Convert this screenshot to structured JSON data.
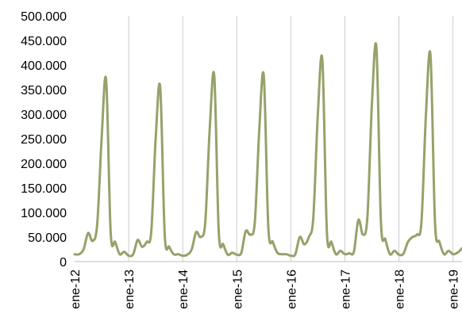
{
  "chart_data": {
    "type": "line",
    "title": "",
    "xlabel": "",
    "ylabel": "",
    "ylim": [
      0,
      500000
    ],
    "y_ticks": [
      0,
      50000,
      100000,
      150000,
      200000,
      250000,
      300000,
      350000,
      400000,
      450000,
      500000
    ],
    "y_tick_labels": [
      "0",
      "50.000",
      "100.000",
      "150.000",
      "200.000",
      "250.000",
      "300.000",
      "350.000",
      "400.000",
      "450.000",
      "500.000"
    ],
    "x_tick_labels": [
      "ene-12",
      "ene-13",
      "ene-14",
      "ene-15",
      "ene-16",
      "ene-17",
      "ene-18",
      "ene-19"
    ],
    "grid": "vertical",
    "legend": "none",
    "line_color": "#95a26a",
    "series": [
      {
        "x": [
          "2012-01",
          "2012-02",
          "2012-03",
          "2012-04",
          "2012-05",
          "2012-06",
          "2012-07",
          "2012-08",
          "2012-09",
          "2012-10",
          "2012-11",
          "2012-12",
          "2013-01",
          "2013-02",
          "2013-03",
          "2013-04",
          "2013-05",
          "2013-06",
          "2013-07",
          "2013-08",
          "2013-09",
          "2013-10",
          "2013-11",
          "2013-12",
          "2014-01",
          "2014-02",
          "2014-03",
          "2014-04",
          "2014-05",
          "2014-06",
          "2014-07",
          "2014-08",
          "2014-09",
          "2014-10",
          "2014-11",
          "2014-12",
          "2015-01",
          "2015-02",
          "2015-03",
          "2015-04",
          "2015-05",
          "2015-06",
          "2015-07",
          "2015-08",
          "2015-09",
          "2015-10",
          "2015-11",
          "2015-12",
          "2016-01",
          "2016-02",
          "2016-03",
          "2016-04",
          "2016-05",
          "2016-06",
          "2016-07",
          "2016-08",
          "2016-09",
          "2016-10",
          "2016-11",
          "2016-12",
          "2017-01",
          "2017-02",
          "2017-03",
          "2017-04",
          "2017-05",
          "2017-06",
          "2017-07",
          "2017-08",
          "2017-09",
          "2017-10",
          "2017-11",
          "2017-12",
          "2018-01",
          "2018-02",
          "2018-03",
          "2018-04",
          "2018-05",
          "2018-06",
          "2018-07",
          "2018-08",
          "2018-09",
          "2018-10",
          "2018-11",
          "2018-12",
          "2019-01",
          "2019-02",
          "2019-03"
        ],
        "values": [
          15000,
          15000,
          25000,
          58000,
          42000,
          75000,
          250000,
          370000,
          60000,
          40000,
          15000,
          20000,
          12000,
          15000,
          44000,
          30000,
          40000,
          60000,
          250000,
          355000,
          55000,
          30000,
          15000,
          15000,
          12000,
          14000,
          25000,
          60000,
          50000,
          80000,
          270000,
          378000,
          60000,
          35000,
          14000,
          18000,
          14000,
          18000,
          62000,
          55000,
          80000,
          270000,
          378000,
          70000,
          40000,
          18000,
          15000,
          15000,
          12000,
          15000,
          50000,
          35000,
          50000,
          90000,
          300000,
          410000,
          60000,
          40000,
          15000,
          22000,
          15000,
          17000,
          20000,
          85000,
          55000,
          90000,
          320000,
          435000,
          80000,
          45000,
          15000,
          22000,
          14000,
          16000,
          40000,
          50000,
          55000,
          80000,
          300000,
          420000,
          80000,
          40000,
          15000,
          22000,
          15000,
          18000,
          27000
        ]
      }
    ]
  }
}
